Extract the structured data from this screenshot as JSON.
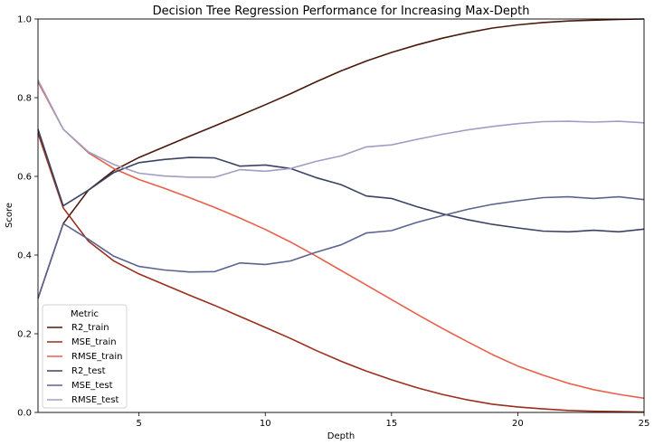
{
  "chart_data": {
    "type": "line",
    "title": "Decision Tree Regression Performance for Increasing Max-Depth",
    "xlabel": "Depth",
    "ylabel": "Score",
    "xlim": [
      1,
      25
    ],
    "ylim": [
      0,
      1
    ],
    "xticks": [
      5,
      10,
      15,
      20,
      25
    ],
    "yticks": [
      0.0,
      0.2,
      0.4,
      0.6,
      0.8,
      1.0
    ],
    "grid": false,
    "legend": {
      "title": "Metric",
      "placement": "lower-left"
    },
    "x": [
      1,
      2,
      3,
      4,
      5,
      6,
      7,
      8,
      9,
      10,
      11,
      12,
      13,
      14,
      15,
      16,
      17,
      18,
      19,
      20,
      21,
      22,
      23,
      24,
      25
    ],
    "series": [
      {
        "name": "R2_train",
        "color": "#4a1a0c",
        "values": [
          0.29,
          0.48,
          0.565,
          0.615,
          0.648,
          0.675,
          0.702,
          0.728,
          0.755,
          0.782,
          0.81,
          0.84,
          0.868,
          0.893,
          0.915,
          0.934,
          0.951,
          0.965,
          0.977,
          0.985,
          0.991,
          0.995,
          0.997,
          0.999,
          1.0
        ]
      },
      {
        "name": "MSE_train",
        "color": "#9c2f1c",
        "values": [
          0.71,
          0.52,
          0.435,
          0.385,
          0.352,
          0.325,
          0.298,
          0.272,
          0.244,
          0.216,
          0.188,
          0.158,
          0.13,
          0.105,
          0.083,
          0.063,
          0.046,
          0.032,
          0.021,
          0.014,
          0.009,
          0.005,
          0.003,
          0.002,
          0.001
        ]
      },
      {
        "name": "RMSE_train",
        "color": "#e8604a",
        "values": [
          0.84,
          0.72,
          0.66,
          0.62,
          0.592,
          0.57,
          0.546,
          0.521,
          0.494,
          0.465,
          0.433,
          0.398,
          0.361,
          0.324,
          0.287,
          0.25,
          0.214,
          0.18,
          0.147,
          0.118,
          0.095,
          0.074,
          0.058,
          0.046,
          0.036
        ]
      },
      {
        "name": "R2_test",
        "color": "#3c4262",
        "values": [
          0.72,
          0.525,
          0.565,
          0.61,
          0.635,
          0.643,
          0.648,
          0.647,
          0.626,
          0.629,
          0.62,
          0.597,
          0.579,
          0.55,
          0.544,
          0.523,
          0.505,
          0.49,
          0.478,
          0.469,
          0.461,
          0.459,
          0.463,
          0.459,
          0.466
        ]
      },
      {
        "name": "MSE_test",
        "color": "#5b6490",
        "values": [
          0.29,
          0.48,
          0.44,
          0.397,
          0.371,
          0.362,
          0.357,
          0.358,
          0.38,
          0.376,
          0.385,
          0.407,
          0.426,
          0.456,
          0.462,
          0.483,
          0.5,
          0.516,
          0.529,
          0.538,
          0.546,
          0.548,
          0.544,
          0.548,
          0.541
        ]
      },
      {
        "name": "RMSE_test",
        "color": "#a09ec4",
        "values": [
          0.845,
          0.72,
          0.662,
          0.63,
          0.608,
          0.601,
          0.598,
          0.598,
          0.617,
          0.613,
          0.62,
          0.638,
          0.652,
          0.675,
          0.68,
          0.694,
          0.707,
          0.718,
          0.727,
          0.734,
          0.739,
          0.74,
          0.738,
          0.74,
          0.736
        ]
      }
    ]
  }
}
